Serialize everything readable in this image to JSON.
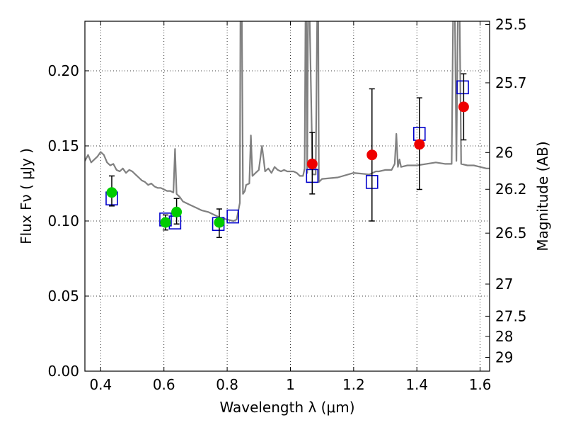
{
  "chart_data": {
    "type": "scatter",
    "xlabel": "Wavelength  λ (μm)",
    "ylabel_left": "Flux  Fν  ( μJy )",
    "ylabel_right": "Magnitude (AB)",
    "xlim": [
      0.35,
      1.63
    ],
    "ylim": [
      0.0,
      0.233
    ],
    "grid": true,
    "grid_style": "dotted",
    "x_ticks": [
      0.4,
      0.6,
      0.8,
      1.0,
      1.2,
      1.4,
      1.6
    ],
    "x_tick_labels": [
      "0.4",
      "0.6",
      "0.8",
      "1",
      "1.2",
      "1.4",
      "1.6"
    ],
    "y_ticks": [
      0.0,
      0.05,
      0.1,
      0.15,
      0.2
    ],
    "y_tick_labels": [
      "0.00",
      "0.05",
      "0.10",
      "0.15",
      "0.20"
    ],
    "right_axis_ticks": [
      {
        "label": "25.5",
        "flux": 0.2309
      },
      {
        "label": "25.7",
        "flux": 0.192
      },
      {
        "label": "26",
        "flux": 0.1456
      },
      {
        "label": "26.2",
        "flux": 0.1211
      },
      {
        "label": "26.5",
        "flux": 0.0919
      },
      {
        "label": "27",
        "flux": 0.058
      },
      {
        "label": "27.5",
        "flux": 0.0366
      },
      {
        "label": "28",
        "flux": 0.0231
      },
      {
        "label": "29",
        "flux": 0.0092
      }
    ],
    "series": [
      {
        "kind": "line",
        "color": "#808080",
        "x": [
          0.35,
          0.36,
          0.37,
          0.38,
          0.39,
          0.4,
          0.41,
          0.42,
          0.43,
          0.44,
          0.45,
          0.46,
          0.47,
          0.48,
          0.49,
          0.5,
          0.51,
          0.52,
          0.53,
          0.54,
          0.55,
          0.56,
          0.57,
          0.58,
          0.59,
          0.6,
          0.61,
          0.62,
          0.63,
          0.635,
          0.64,
          0.65,
          0.66,
          0.68,
          0.7,
          0.72,
          0.74,
          0.76,
          0.78,
          0.8,
          0.82,
          0.83,
          0.84,
          0.842,
          0.846,
          0.85,
          0.856,
          0.86,
          0.87,
          0.875,
          0.88,
          0.89,
          0.9,
          0.91,
          0.92,
          0.93,
          0.94,
          0.95,
          0.96,
          0.97,
          0.98,
          0.99,
          1.0,
          1.01,
          1.02,
          1.03,
          1.04,
          1.045,
          1.048,
          1.05,
          1.053,
          1.056,
          1.06,
          1.07,
          1.08,
          1.085,
          1.088,
          1.09,
          1.1,
          1.15,
          1.2,
          1.25,
          1.27,
          1.28,
          1.3,
          1.32,
          1.33,
          1.335,
          1.34,
          1.345,
          1.35,
          1.37,
          1.4,
          1.43,
          1.46,
          1.49,
          1.51,
          1.515,
          1.52,
          1.525,
          1.53,
          1.535,
          1.54,
          1.56,
          1.58,
          1.6,
          1.62,
          1.63
        ],
        "y": [
          0.14,
          0.144,
          0.139,
          0.141,
          0.143,
          0.146,
          0.144,
          0.139,
          0.137,
          0.138,
          0.134,
          0.133,
          0.135,
          0.132,
          0.134,
          0.133,
          0.131,
          0.129,
          0.127,
          0.126,
          0.124,
          0.125,
          0.123,
          0.122,
          0.122,
          0.121,
          0.12,
          0.12,
          0.119,
          0.148,
          0.118,
          0.116,
          0.113,
          0.111,
          0.109,
          0.107,
          0.106,
          0.104,
          0.102,
          0.101,
          0.1,
          0.101,
          0.112,
          0.245,
          0.245,
          0.118,
          0.12,
          0.124,
          0.125,
          0.157,
          0.13,
          0.132,
          0.134,
          0.15,
          0.133,
          0.135,
          0.132,
          0.136,
          0.134,
          0.133,
          0.134,
          0.133,
          0.133,
          0.133,
          0.132,
          0.13,
          0.13,
          0.135,
          0.245,
          0.245,
          0.132,
          0.245,
          0.245,
          0.131,
          0.131,
          0.245,
          0.245,
          0.126,
          0.128,
          0.129,
          0.132,
          0.131,
          0.133,
          0.133,
          0.134,
          0.134,
          0.138,
          0.158,
          0.136,
          0.141,
          0.136,
          0.137,
          0.137,
          0.138,
          0.139,
          0.138,
          0.138,
          0.245,
          0.245,
          0.14,
          0.245,
          0.245,
          0.138,
          0.137,
          0.137,
          0.136,
          0.135,
          0.135
        ]
      },
      {
        "kind": "open-square",
        "color": "#0000cc",
        "x": [
          0.435,
          0.605,
          0.635,
          0.772,
          0.818,
          1.069,
          1.258,
          1.408,
          1.545
        ],
        "y": [
          0.115,
          0.101,
          0.099,
          0.098,
          0.103,
          0.13,
          0.126,
          0.158,
          0.189
        ]
      },
      {
        "kind": "filled-circle",
        "color": "#00cc00",
        "x": [
          0.435,
          0.605,
          0.64,
          0.775
        ],
        "y": [
          0.119,
          0.099,
          0.106,
          0.099
        ],
        "err_low": [
          0.11,
          0.094,
          0.098,
          0.089
        ],
        "err_high": [
          0.13,
          0.104,
          0.115,
          0.108
        ]
      },
      {
        "kind": "filled-circle",
        "color": "#ee0000",
        "x": [
          1.069,
          1.258,
          1.408,
          1.548
        ],
        "y": [
          0.138,
          0.144,
          0.151,
          0.176
        ],
        "err_low": [
          0.118,
          0.1,
          0.121,
          0.154
        ],
        "err_high": [
          0.159,
          0.188,
          0.182,
          0.198
        ]
      }
    ]
  }
}
